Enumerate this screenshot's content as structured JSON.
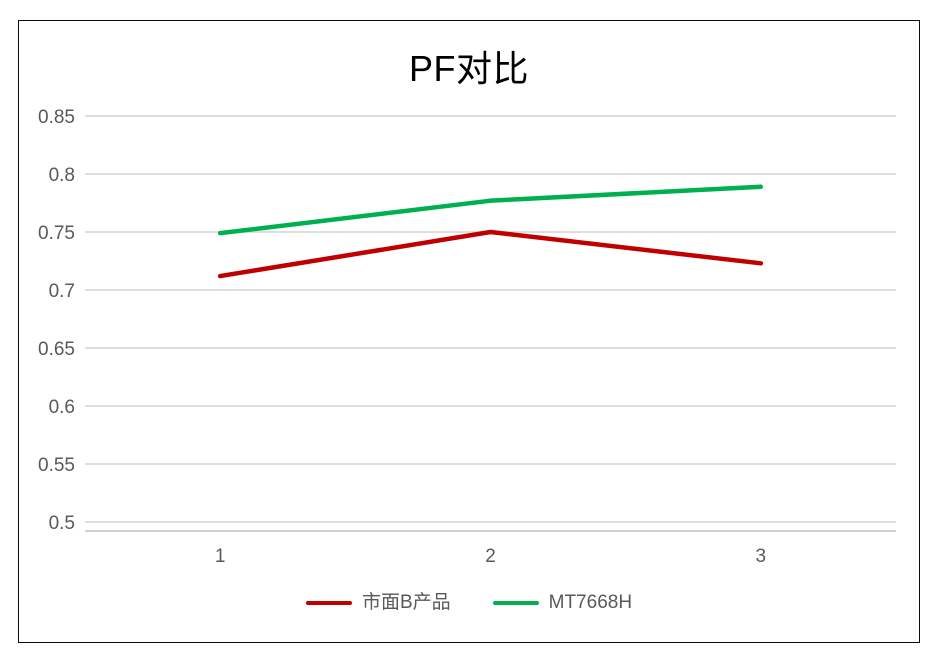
{
  "chart_data": {
    "type": "line",
    "title": "PF对比",
    "categories": [
      "1",
      "2",
      "3"
    ],
    "series": [
      {
        "name": "市面B产品",
        "color": "#C00000",
        "values": [
          0.712,
          0.75,
          0.723
        ]
      },
      {
        "name": "MT7668H",
        "color": "#00B050",
        "values": [
          0.749,
          0.777,
          0.789
        ]
      }
    ],
    "xlabel": "",
    "ylabel": "",
    "ylim": [
      0.5,
      0.85
    ],
    "ytick_step": 0.05,
    "ytick_labels": [
      "0.85",
      "0.8",
      "0.75",
      "0.7",
      "0.65",
      "0.6",
      "0.55",
      "0.5"
    ],
    "grid": true,
    "legend_position": "bottom",
    "colors": {
      "gridline": "#D9D9D9",
      "axis_line": "#BFBFBF",
      "tick_label": "#595959",
      "title": "#000000",
      "frame_border": "#0a0a0a",
      "background": "#ffffff"
    }
  }
}
